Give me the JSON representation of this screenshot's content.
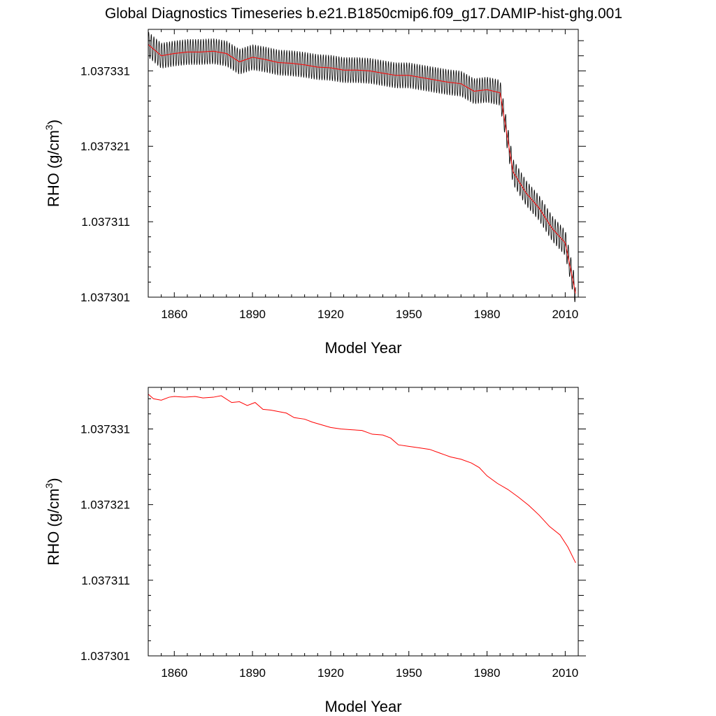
{
  "title": "Global Diagnostics Timeseries b.e21.B1850cmip6.f09_g17.DAMIP-hist-ghg.001",
  "colors": {
    "monthly": "#000000",
    "annual": "#ff0000",
    "axes": "#000000",
    "background": "#ffffff"
  },
  "chart_data": [
    {
      "type": "line",
      "panel": "top",
      "xlabel": "Model Year",
      "ylabel_main": "RHO (g/cm",
      "ylabel_sup": "3",
      "ylabel_close": ")",
      "xlim": [
        1850,
        2015
      ],
      "ylim": [
        1.037301,
        1.0373365
      ],
      "xticks": [
        1860,
        1890,
        1920,
        1950,
        1980,
        2010
      ],
      "xtick_labels": [
        "1860",
        "1890",
        "1920",
        "1950",
        "1980",
        "2010"
      ],
      "yticks": [
        1.037301,
        1.037311,
        1.037321,
        1.037331
      ],
      "ytick_labels": [
        "1.037301",
        "1.037311",
        "1.037321",
        "1.037331"
      ],
      "monthly_amplitude": 1.7e-06,
      "series": [
        {
          "role": "monthly",
          "color": "#000000"
        },
        {
          "role": "annual",
          "color": "#ff0000"
        }
      ],
      "annual_trend": {
        "x": [
          1850,
          1855,
          1860,
          1865,
          1870,
          1875,
          1880,
          1885,
          1890,
          1895,
          1900,
          1905,
          1910,
          1915,
          1920,
          1925,
          1930,
          1935,
          1940,
          1945,
          1950,
          1955,
          1960,
          1965,
          1970,
          1975,
          1980,
          1985,
          1990,
          1995,
          2000,
          2005,
          2010,
          2014
        ],
        "y": [
          1.0373345,
          1.037333,
          1.0373333,
          1.0373335,
          1.0373335,
          1.0373336,
          1.0373333,
          1.0373322,
          1.0373328,
          1.0373325,
          1.0373321,
          1.037332,
          1.0373318,
          1.0373315,
          1.0373314,
          1.0373311,
          1.0373311,
          1.037331,
          1.0373307,
          1.0373304,
          1.0373304,
          1.0373301,
          1.0373298,
          1.0373295,
          1.0373293,
          1.0373283,
          1.0373285,
          1.0373281,
          1.0373176,
          1.0373148,
          1.0373128,
          1.0373101,
          1.0373082,
          1.0373015
        ]
      }
    },
    {
      "type": "line",
      "panel": "bottom",
      "xlabel": "Model Year",
      "ylabel_main": "RHO (g/cm",
      "ylabel_sup": "3",
      "ylabel_close": ")",
      "xlim": [
        1850,
        2015
      ],
      "ylim": [
        1.037301,
        1.0373365
      ],
      "xticks": [
        1860,
        1890,
        1920,
        1950,
        1980,
        2010
      ],
      "xtick_labels": [
        "1860",
        "1890",
        "1920",
        "1950",
        "1980",
        "2010"
      ],
      "yticks": [
        1.037301,
        1.037311,
        1.037321,
        1.037331
      ],
      "ytick_labels": [
        "1.037301",
        "1.037311",
        "1.037321",
        "1.037331"
      ],
      "series": [
        {
          "role": "annual",
          "color": "#ff0000"
        }
      ],
      "annual_trend": {
        "x": [
          1850,
          1852,
          1855,
          1858,
          1860,
          1864,
          1868,
          1871,
          1875,
          1878,
          1882,
          1885,
          1888,
          1891,
          1894,
          1897,
          1900,
          1903,
          1906,
          1910,
          1913,
          1916,
          1920,
          1924,
          1928,
          1932,
          1936,
          1940,
          1943,
          1946,
          1950,
          1954,
          1958,
          1962,
          1966,
          1970,
          1974,
          1977,
          1980,
          1984,
          1988,
          1992,
          1996,
          2000,
          2004,
          2008,
          2011,
          2014
        ],
        "y": [
          1.0373356,
          1.037335,
          1.0373348,
          1.0373352,
          1.0373353,
          1.0373352,
          1.0373353,
          1.0373351,
          1.0373352,
          1.0373354,
          1.0373345,
          1.0373346,
          1.0373341,
          1.0373345,
          1.0373336,
          1.0373335,
          1.0373333,
          1.0373331,
          1.0373325,
          1.0373323,
          1.0373319,
          1.0373316,
          1.0373312,
          1.037331,
          1.0373309,
          1.0373308,
          1.0373303,
          1.0373302,
          1.0373298,
          1.0373289,
          1.0373287,
          1.0373285,
          1.0373283,
          1.0373278,
          1.0373273,
          1.037327,
          1.0373265,
          1.0373259,
          1.0373248,
          1.0373238,
          1.037323,
          1.037322,
          1.0373209,
          1.0373196,
          1.0373181,
          1.037317,
          1.0373154,
          1.0373133
        ]
      }
    }
  ]
}
